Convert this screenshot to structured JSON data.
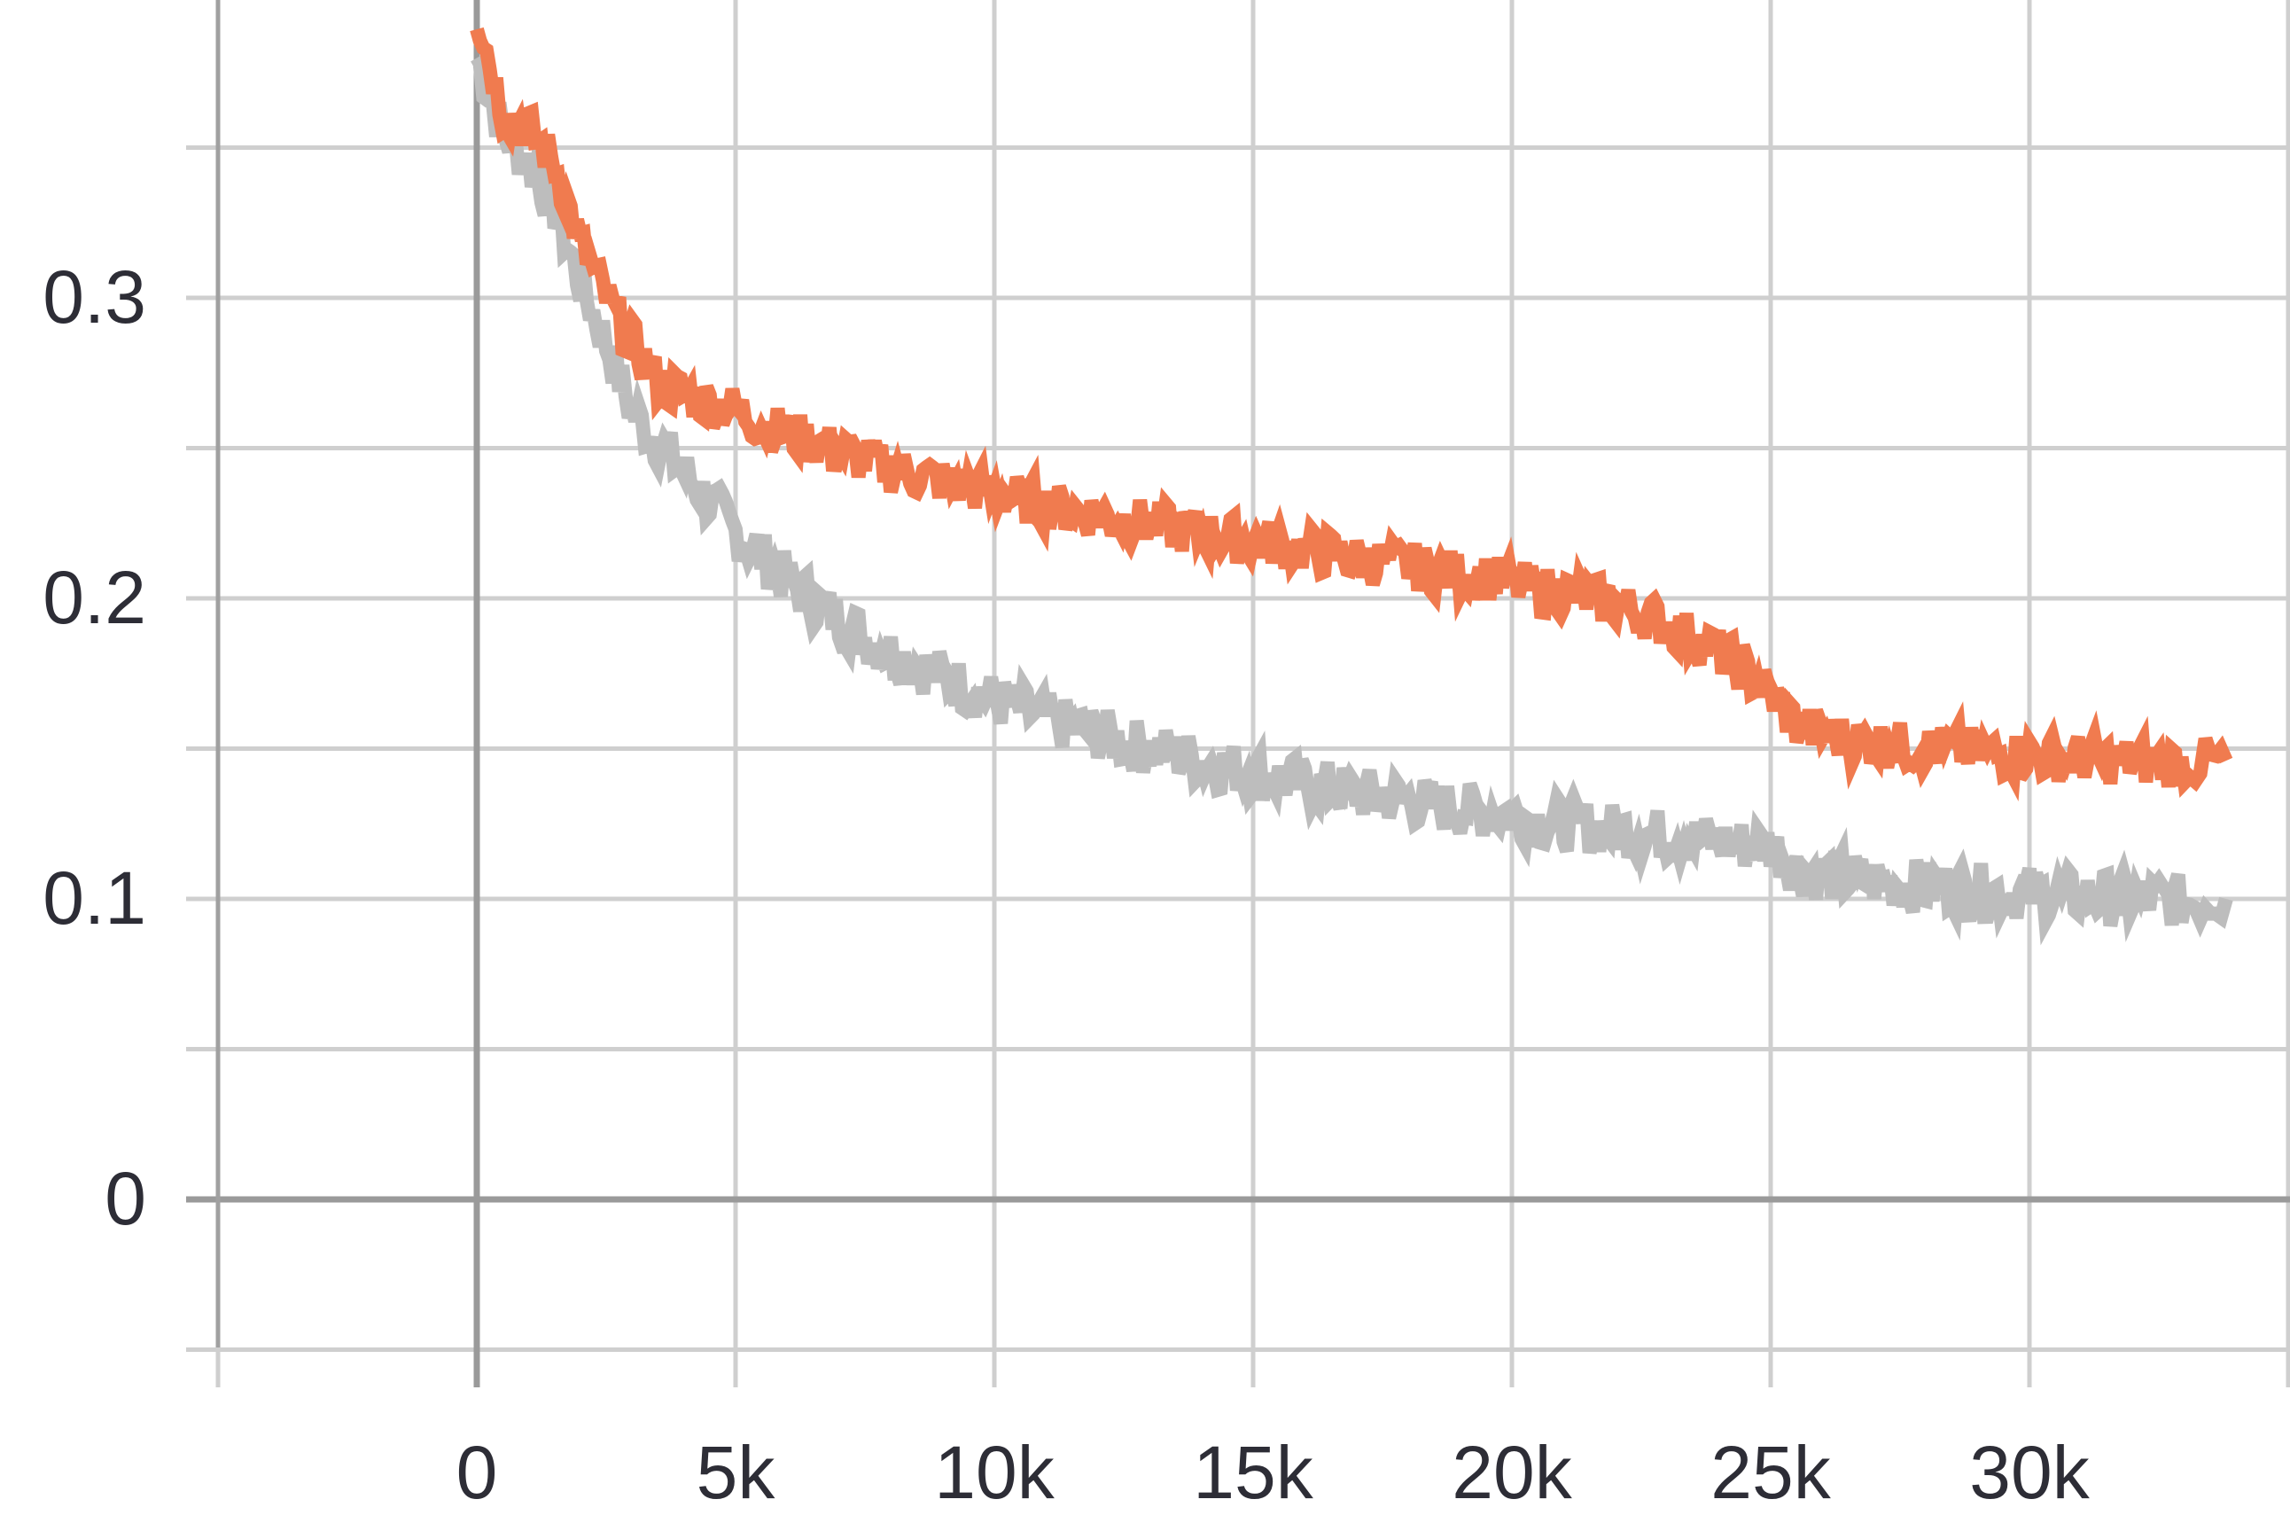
{
  "chart_data": {
    "type": "line",
    "title": "",
    "xlabel": "",
    "ylabel": "",
    "xlim": [
      -5000,
      35000
    ],
    "ylim": [
      -0.05,
      0.4
    ],
    "x_ticks": [
      0,
      5000,
      10000,
      15000,
      20000,
      25000,
      30000
    ],
    "x_tick_labels": [
      "0",
      "5k",
      "10k",
      "15k",
      "20k",
      "25k",
      "30k"
    ],
    "y_ticks": [
      0,
      0.1,
      0.2,
      0.3
    ],
    "y_tick_labels": [
      "0",
      "0.1",
      "0.2",
      "0.3"
    ],
    "grid": true,
    "legend": "none",
    "series": [
      {
        "color": "#bdbdbd",
        "x": [
          0,
          500,
          1000,
          1500,
          2000,
          2500,
          3000,
          3500,
          4000,
          4500,
          5000,
          5500,
          6000,
          6500,
          7000,
          7500,
          8000,
          8500,
          9000,
          9500,
          10000,
          10500,
          11000,
          11500,
          12000,
          12500,
          13000,
          13500,
          14000,
          14500,
          15000,
          15500,
          16000,
          16500,
          17000,
          17500,
          18000,
          18500,
          19000,
          19500,
          20000,
          20500,
          21000,
          21500,
          22000,
          22500,
          23000,
          23500,
          24000,
          24500,
          25000,
          25500,
          26000,
          26500,
          27000,
          27500,
          28000,
          28500,
          29000,
          29500,
          30000,
          30500,
          31000,
          31500,
          32000,
          32500,
          33000,
          33800
        ],
        "y": [
          0.38,
          0.355,
          0.345,
          0.33,
          0.305,
          0.285,
          0.262,
          0.252,
          0.242,
          0.232,
          0.222,
          0.214,
          0.206,
          0.199,
          0.193,
          0.187,
          0.182,
          0.178,
          0.174,
          0.17,
          0.166,
          0.163,
          0.16,
          0.157,
          0.155,
          0.152,
          0.15,
          0.148,
          0.146,
          0.144,
          0.142,
          0.14,
          0.138,
          0.137,
          0.135,
          0.134,
          0.133,
          0.131,
          0.13,
          0.129,
          0.128,
          0.126,
          0.125,
          0.124,
          0.123,
          0.122,
          0.121,
          0.12,
          0.119,
          0.118,
          0.118,
          0.11,
          0.108,
          0.107,
          0.106,
          0.105,
          0.104,
          0.104,
          0.103,
          0.102,
          0.102,
          0.101,
          0.101,
          0.1,
          0.1,
          0.1,
          0.099,
          0.1
        ]
      },
      {
        "color": "#f07b4f",
        "x": [
          0,
          500,
          1000,
          1500,
          2000,
          2500,
          3000,
          3500,
          4000,
          4500,
          5000,
          5500,
          6000,
          6500,
          7000,
          7500,
          8000,
          8500,
          9000,
          9500,
          10000,
          10500,
          11000,
          11500,
          12000,
          12500,
          13000,
          13500,
          14000,
          14500,
          15000,
          15500,
          16000,
          16500,
          17000,
          17500,
          18000,
          18500,
          19000,
          19500,
          20000,
          20500,
          21000,
          21500,
          22000,
          22500,
          23000,
          23500,
          24000,
          24500,
          25000,
          25500,
          26000,
          26500,
          27000,
          27500,
          28000,
          28500,
          29000,
          29500,
          30000,
          30500,
          31000,
          31500,
          32000,
          32500,
          33000,
          33800
        ],
        "y": [
          0.395,
          0.362,
          0.356,
          0.345,
          0.318,
          0.3,
          0.285,
          0.272,
          0.268,
          0.265,
          0.263,
          0.258,
          0.255,
          0.252,
          0.249,
          0.246,
          0.243,
          0.241,
          0.239,
          0.237,
          0.235,
          0.233,
          0.231,
          0.229,
          0.228,
          0.226,
          0.225,
          0.223,
          0.222,
          0.22,
          0.219,
          0.218,
          0.216,
          0.215,
          0.213,
          0.212,
          0.211,
          0.209,
          0.208,
          0.207,
          0.205,
          0.203,
          0.202,
          0.2,
          0.198,
          0.195,
          0.191,
          0.187,
          0.182,
          0.176,
          0.168,
          0.158,
          0.155,
          0.153,
          0.152,
          0.151,
          0.15,
          0.15,
          0.149,
          0.148,
          0.148,
          0.147,
          0.147,
          0.146,
          0.146,
          0.145,
          0.145,
          0.146
        ]
      }
    ]
  }
}
